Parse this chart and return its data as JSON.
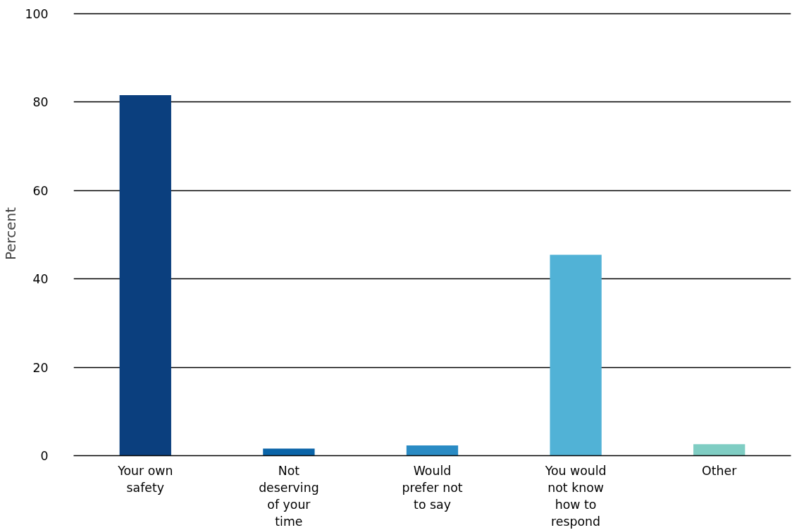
{
  "chart_data": {
    "type": "bar",
    "ylabel": "Percent",
    "categories": [
      "Your own safety",
      "Not deserving of your time",
      "Would prefer not to say",
      "You would not know how to respond",
      "Other"
    ],
    "values": [
      81.5,
      1.6,
      2.3,
      45.4,
      2.6
    ],
    "colors": [
      "#0b3f7e",
      "#0a64a8",
      "#2a8bc4",
      "#51b2d6",
      "#7fcdc3"
    ],
    "ylim": [
      0,
      100
    ],
    "yticks": [
      0,
      20,
      40,
      60,
      80,
      100
    ],
    "grid": "y"
  }
}
